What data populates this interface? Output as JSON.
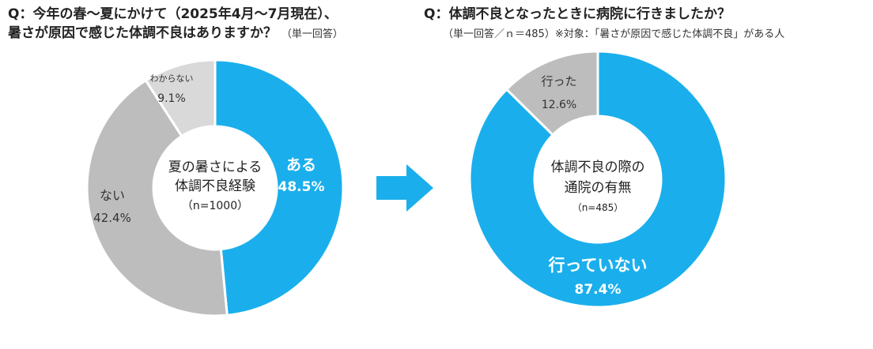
{
  "question1": {
    "title_line1": "Q：今年の春～夏にかけて（2025年4月～7月現在）、",
    "title_line2": "暑さが原因で感じた体調不良はありますか？",
    "note": "（単一回答）"
  },
  "question2": {
    "title": "Q：体調不良となったときに病院に行きましたか？",
    "note": "（単一回答／ｎ＝485）※対象：「暑さが原因で感じた体調不良」がある人"
  },
  "colors": {
    "blue": "#1AAFEC",
    "gray": "#BDBDBD",
    "lightgray": "#D9D9D9",
    "arrow": "#1AAFEC"
  },
  "chart_data": [
    {
      "type": "pie",
      "center_label": [
        "夏の暑さによる",
        "体調不良経験",
        "（n=1000）"
      ],
      "slices": [
        {
          "label": "ある",
          "value": 48.5,
          "value_label": "48.5%",
          "color": "#1AAFEC"
        },
        {
          "label": "ない",
          "value": 42.4,
          "value_label": "42.4%",
          "color": "#BDBDBD"
        },
        {
          "label": "わからない",
          "value": 9.1,
          "value_label": "9.1%",
          "color": "#D9D9D9"
        }
      ]
    },
    {
      "type": "pie",
      "center_label": [
        "体調不良の際の",
        "通院の有無",
        "（n=485）"
      ],
      "slices": [
        {
          "label": "行っていない",
          "value": 87.4,
          "value_label": "87.4%",
          "color": "#1AAFEC"
        },
        {
          "label": "行った",
          "value": 12.6,
          "value_label": "12.6%",
          "color": "#BDBDBD"
        }
      ]
    }
  ]
}
